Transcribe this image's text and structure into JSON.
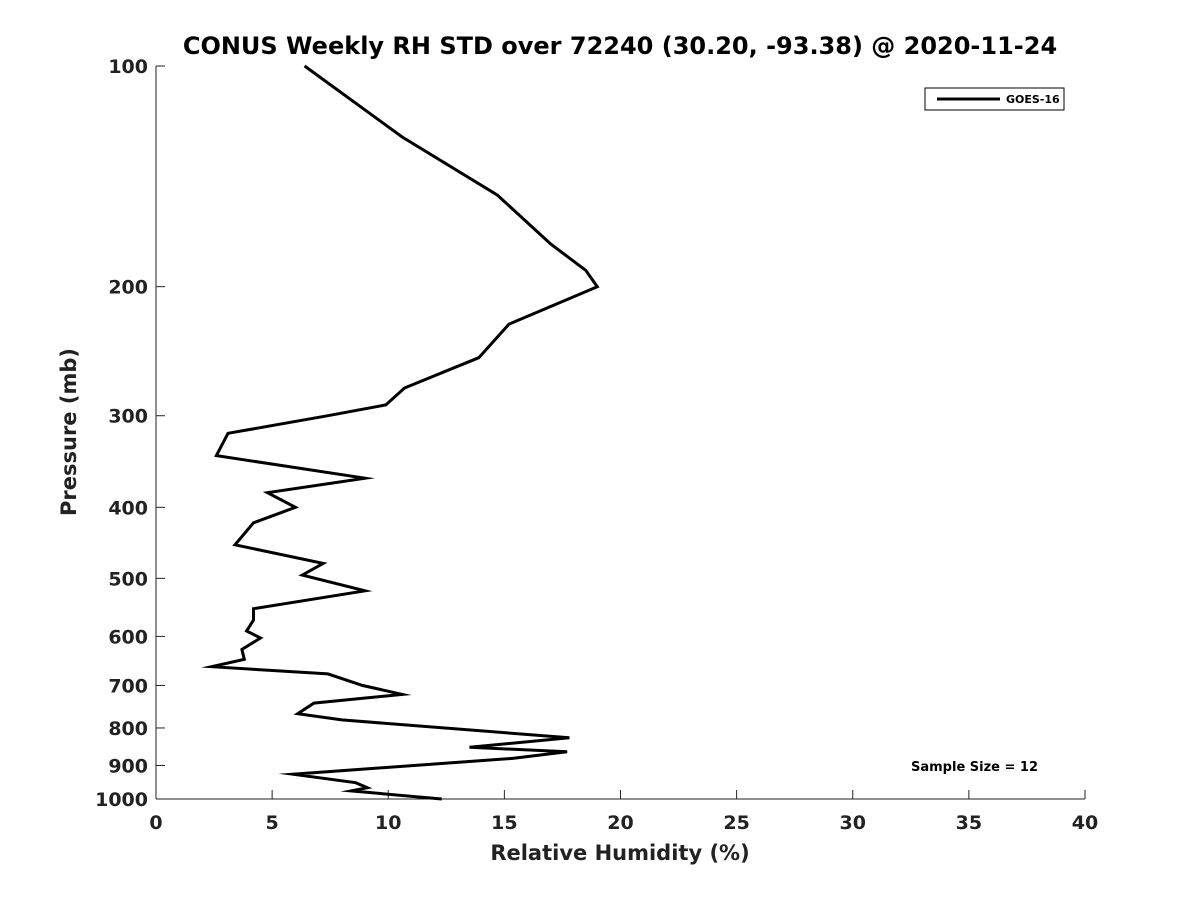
{
  "chart_data": {
    "type": "line",
    "title": "CONUS Weekly RH STD over 72240 (30.20, -93.38) @ 2020-11-24",
    "xlabel": "Relative Humidity (%)",
    "ylabel": "Pressure (mb)",
    "xlim": [
      0,
      40
    ],
    "ylim": [
      1000,
      100
    ],
    "y_scale": "log",
    "y_reversed": true,
    "x_ticks": [
      0,
      5,
      10,
      15,
      20,
      25,
      30,
      35,
      40
    ],
    "y_ticks": [
      100,
      200,
      300,
      400,
      500,
      600,
      700,
      800,
      900,
      1000
    ],
    "grid": false,
    "legend_position": "top-right",
    "annotation": "Sample Size = 12",
    "series": [
      {
        "name": "GOES-16",
        "color": "#000000",
        "points": [
          [
            6.4,
            100
          ],
          [
            10.6,
            125
          ],
          [
            14.7,
            150
          ],
          [
            17.0,
            175
          ],
          [
            18.5,
            190
          ],
          [
            19.0,
            200
          ],
          [
            15.2,
            225
          ],
          [
            13.9,
            250
          ],
          [
            10.7,
            275
          ],
          [
            9.9,
            290
          ],
          [
            7.4,
            300
          ],
          [
            3.1,
            317
          ],
          [
            2.6,
            340
          ],
          [
            9.0,
            365
          ],
          [
            4.8,
            382
          ],
          [
            6.0,
            400
          ],
          [
            4.2,
            420
          ],
          [
            3.4,
            450
          ],
          [
            7.2,
            477
          ],
          [
            6.3,
            495
          ],
          [
            9.0,
            520
          ],
          [
            4.2,
            550
          ],
          [
            4.2,
            570
          ],
          [
            3.9,
            590
          ],
          [
            4.5,
            603
          ],
          [
            3.7,
            625
          ],
          [
            3.8,
            645
          ],
          [
            2.4,
            660
          ],
          [
            7.4,
            675
          ],
          [
            8.9,
            700
          ],
          [
            10.6,
            720
          ],
          [
            6.8,
            740
          ],
          [
            6.1,
            765
          ],
          [
            8.0,
            780
          ],
          [
            17.8,
            825
          ],
          [
            13.5,
            850
          ],
          [
            17.7,
            862
          ],
          [
            15.4,
            880
          ],
          [
            5.9,
            925
          ],
          [
            8.6,
            950
          ],
          [
            9.1,
            965
          ],
          [
            8.4,
            975
          ],
          [
            12.3,
            1000
          ]
        ]
      }
    ]
  }
}
